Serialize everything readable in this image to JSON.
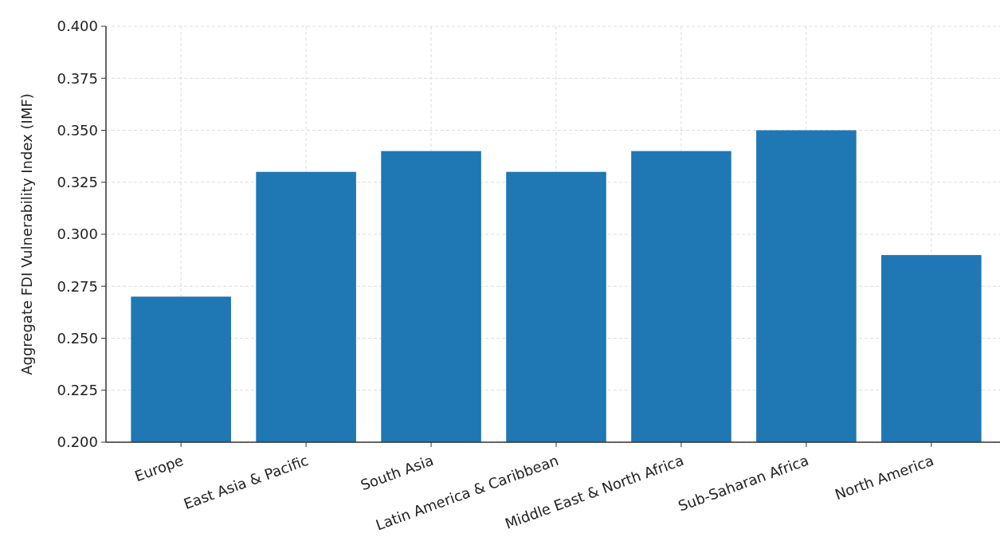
{
  "chart_data": {
    "type": "bar",
    "ylabel": "Aggregate FDI Vulnerability Index (IMF)",
    "categories": [
      "Europe",
      "East Asia & Pacific",
      "South Asia",
      "Latin America & Caribbean",
      "Middle East & North Africa",
      "Sub-Saharan Africa",
      "North America"
    ],
    "values": [
      0.27,
      0.33,
      0.34,
      0.33,
      0.34,
      0.35,
      0.29
    ],
    "color": "#1f77b4",
    "ylim": [
      0.2,
      0.4
    ],
    "yticks": [
      {
        "value": 0.2,
        "label": "0.200"
      },
      {
        "value": 0.225,
        "label": "0.225"
      },
      {
        "value": 0.25,
        "label": "0.250"
      },
      {
        "value": 0.275,
        "label": "0.275"
      },
      {
        "value": 0.3,
        "label": "0.300"
      },
      {
        "value": 0.325,
        "label": "0.325"
      },
      {
        "value": 0.35,
        "label": "0.350"
      },
      {
        "value": 0.375,
        "label": "0.375"
      },
      {
        "value": 0.4,
        "label": "0.400"
      }
    ],
    "grid": true
  }
}
